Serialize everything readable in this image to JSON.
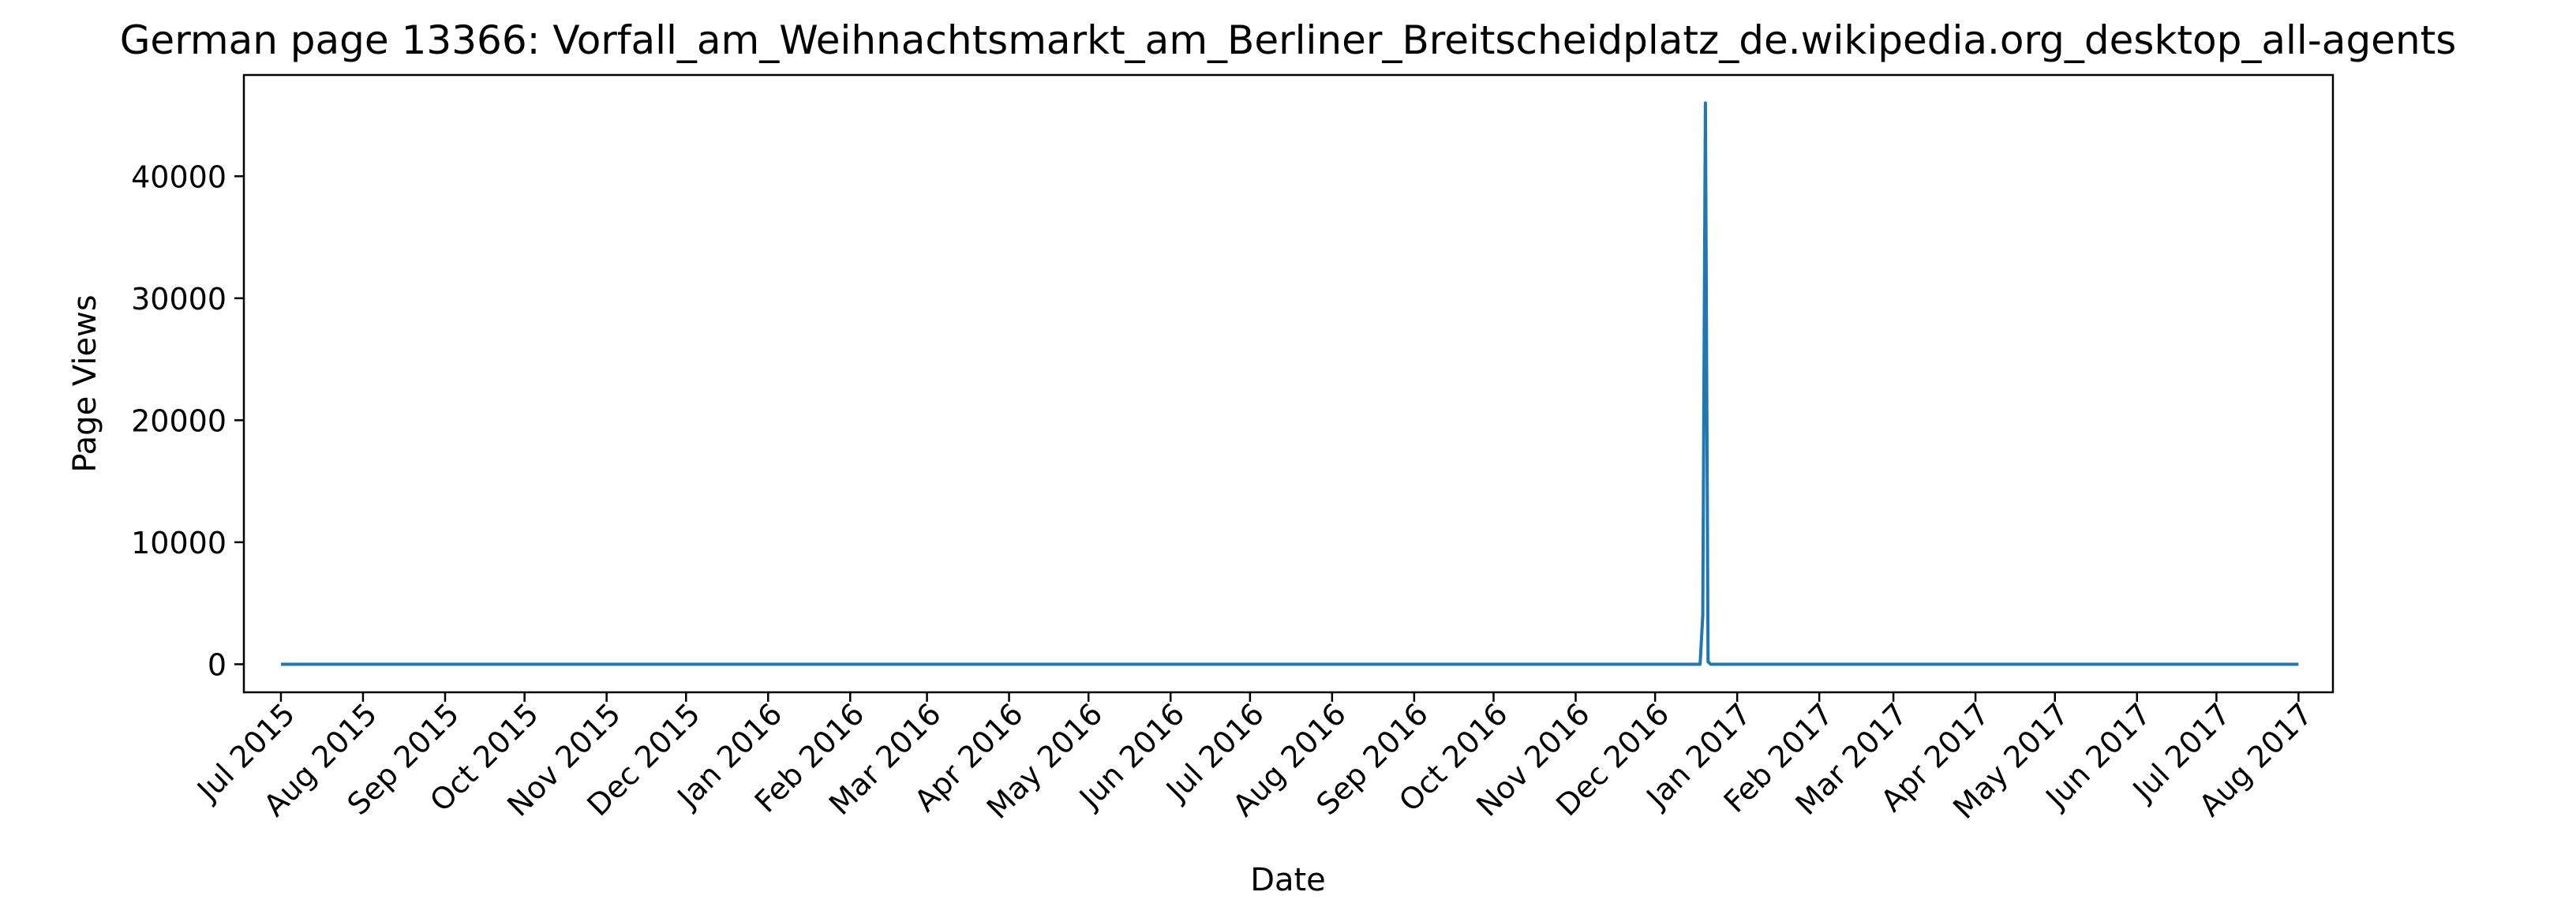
{
  "chart_data": {
    "type": "line",
    "title": "German page 13366: Vorfall_am_Weihnachtsmarkt_am_Berliner_Breitscheidplatz_de.wikipedia.org_desktop_all-agents",
    "xlabel": "Date",
    "ylabel": "Page Views",
    "xlim": [
      "2015-06-17",
      "2017-08-14"
    ],
    "ylim": [
      -2300,
      48300
    ],
    "yticks": [
      0,
      10000,
      20000,
      30000,
      40000
    ],
    "ytick_labels": [
      "0",
      "10000",
      "20000",
      "30000",
      "40000"
    ],
    "xtick_labels": [
      "Jul 2015",
      "Aug 2015",
      "Sep 2015",
      "Oct 2015",
      "Nov 2015",
      "Dec 2015",
      "Jan 2016",
      "Feb 2016",
      "Mar 2016",
      "Apr 2016",
      "May 2016",
      "Jun 2016",
      "Jul 2016",
      "Aug 2016",
      "Sep 2016",
      "Oct 2016",
      "Nov 2016",
      "Dec 2016",
      "Jan 2017",
      "Feb 2017",
      "Mar 2017",
      "Apr 2017",
      "May 2017",
      "Jun 2017",
      "Jul 2017",
      "Aug 2017"
    ],
    "xticks": [
      "2015-07-01",
      "2015-08-01",
      "2015-09-01",
      "2015-10-01",
      "2015-11-01",
      "2015-12-01",
      "2016-01-01",
      "2016-02-01",
      "2016-03-01",
      "2016-04-01",
      "2016-05-01",
      "2016-06-01",
      "2016-07-01",
      "2016-08-01",
      "2016-09-01",
      "2016-10-01",
      "2016-11-01",
      "2016-12-01",
      "2017-01-01",
      "2017-02-01",
      "2017-03-01",
      "2017-04-01",
      "2017-05-01",
      "2017-06-01",
      "2017-07-01",
      "2017-08-01"
    ],
    "grid": false,
    "legend": "none",
    "series": [
      {
        "color": "#1f77b4",
        "x": [
          "2015-07-01",
          "2016-12-18",
          "2016-12-19",
          "2016-12-20",
          "2016-12-21",
          "2016-12-22",
          "2017-08-01"
        ],
        "y": [
          0,
          0,
          4000,
          46000,
          200,
          0,
          0
        ]
      }
    ]
  }
}
